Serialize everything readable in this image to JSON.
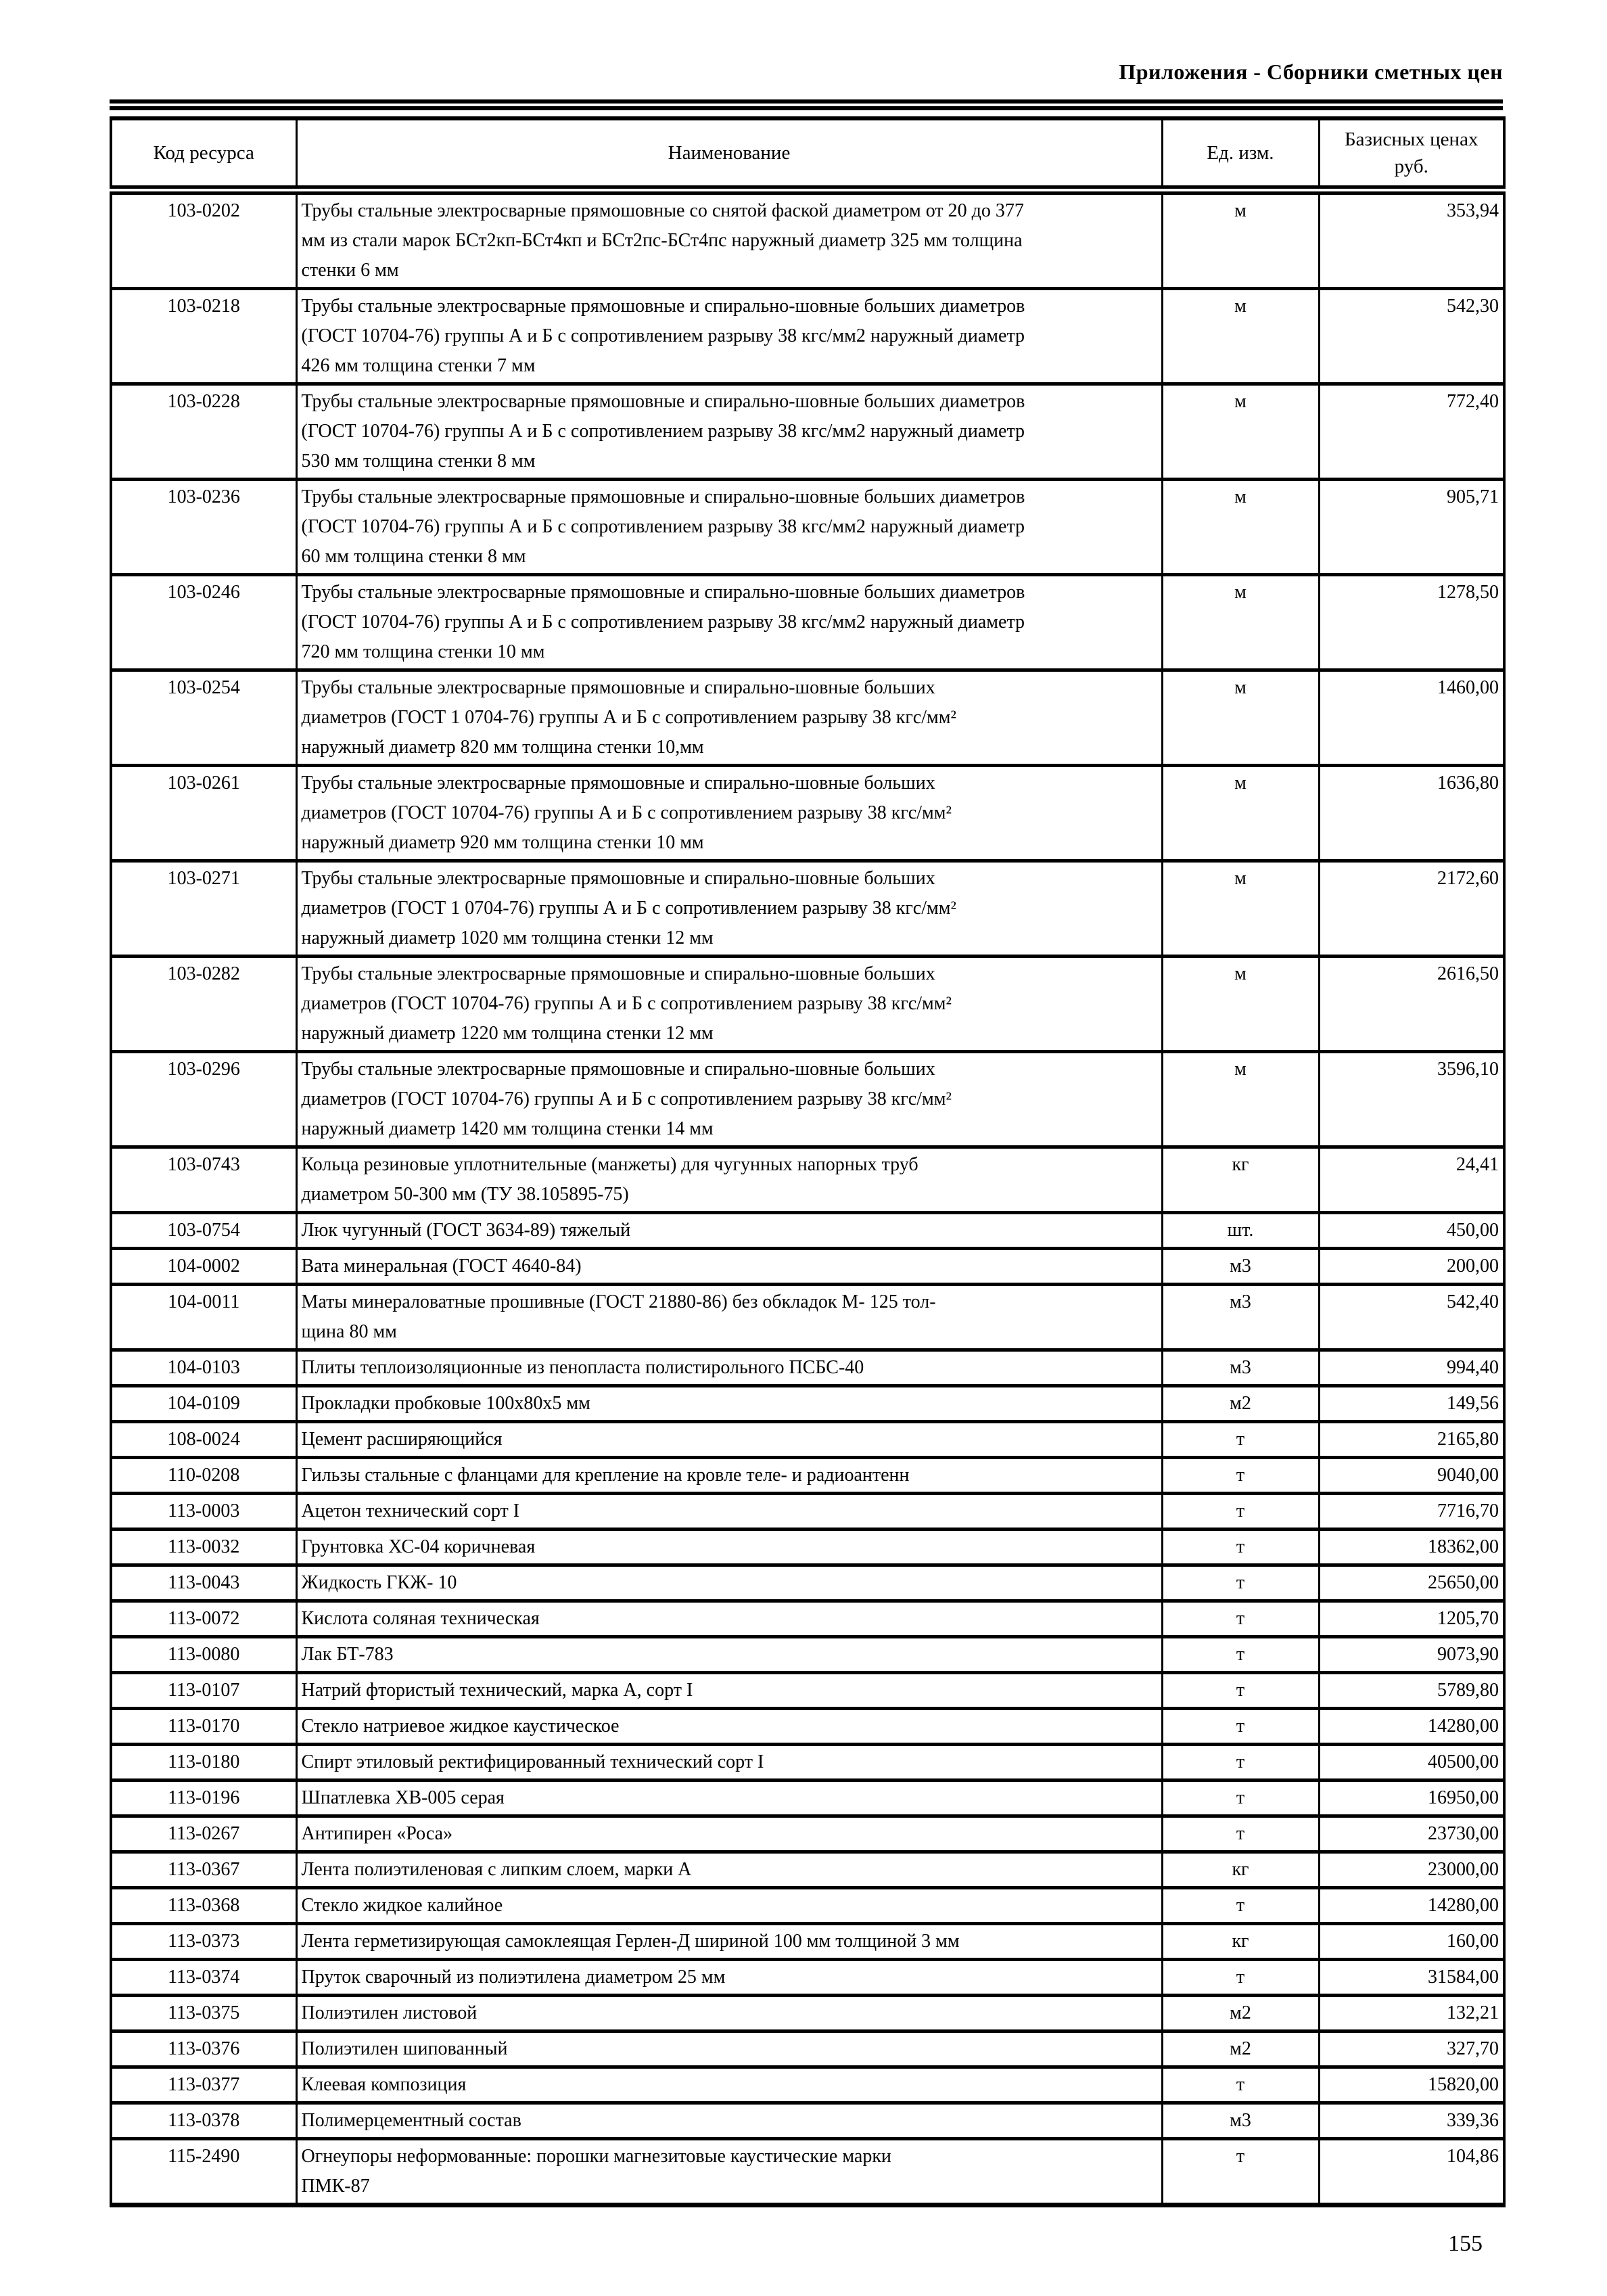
{
  "page": {
    "title": "Приложения - Сборники сметных цен",
    "page_number": "155"
  },
  "table": {
    "columns": [
      "Код ресурса",
      "Наименование",
      "Ед. изм.",
      "Базисных ценах\nруб."
    ],
    "rows": [
      {
        "code": "103-0202",
        "name": "Трубы стальные электросварные прямошовные со снятой фаской диаметром от 20 до 377\nмм из стали марок БСт2кп-БСт4кп и БСт2пс-БСт4пс наружный диаметр 325 мм толщина\nстенки 6 мм",
        "unit": "м",
        "price": "353,94"
      },
      {
        "code": "103-0218",
        "name": "Трубы стальные электросварные прямошовные и спирально-шовные больших диаметров\n(ГОСТ 10704-76) группы А и Б с сопротивлением разрыву 38 кгс/мм2 наружный диаметр\n426 мм толщина стенки 7 мм",
        "unit": "м",
        "price": "542,30"
      },
      {
        "code": "103-0228",
        "name": "Трубы стальные электросварные прямошовные и спирально-шовные больших диаметров\n(ГОСТ 10704-76) группы А и Б с сопротивлением разрыву 38 кгс/мм2 наружный диаметр\n530 мм толщина стенки 8 мм",
        "unit": "м",
        "price": "772,40"
      },
      {
        "code": "103-0236",
        "name": "Трубы стальные электросварные прямошовные и спирально-шовные больших диаметров\n(ГОСТ 10704-76) группы А и Б с сопротивлением разрыву 38 кгс/мм2 наружный диаметр\n60 мм толщина стенки 8 мм",
        "unit": "м",
        "price": "905,71"
      },
      {
        "code": "103-0246",
        "name": "Трубы стальные электросварные прямошовные и спирально-шовные больших диаметров\n(ГОСТ 10704-76) группы А и Б с сопротивлением разрыву 38 кгс/мм2 наружный диаметр\n720 мм толщина стенки 10 мм",
        "unit": "м",
        "price": "1278,50"
      },
      {
        "code": "103-0254",
        "name": "Трубы стальные электросварные прямошовные и спирально-шовные больших\nдиаметров (ГОСТ 1 0704-76) группы А и Б с сопротивлением разрыву 38 кгс/мм²\nнаружный диаметр 820 мм толщина стенки 10,мм",
        "unit": "м",
        "price": "1460,00"
      },
      {
        "code": "103-0261",
        "name": "Трубы стальные электросварные прямошовные и спирально-шовные больших\nдиаметров (ГОСТ 10704-76) группы А и Б с сопротивлением разрыву 38 кгс/мм²\nнаружный диаметр 920 мм толщина стенки 10 мм",
        "unit": "м",
        "price": "1636,80"
      },
      {
        "code": "103-0271",
        "name": "Трубы стальные электросварные прямошовные и спирально-шовные больших\nдиаметров (ГОСТ 1 0704-76) группы А и Б с сопротивлением разрыву 38 кгс/мм²\nнаружный диаметр 1020 мм толщина стенки 12 мм",
        "unit": "м",
        "price": "2172,60"
      },
      {
        "code": "103-0282",
        "name": "Трубы стальные электросварные прямошовные и спирально-шовные больших\nдиаметров (ГОСТ 10704-76) группы А и Б с сопротивлением разрыву 38 кгс/мм²\nнаружный диаметр 1220 мм толщина стенки 12 мм",
        "unit": "м",
        "price": "2616,50"
      },
      {
        "code": "103-0296",
        "name": "Трубы стальные электросварные прямошовные и спирально-шовные больших\nдиаметров (ГОСТ 10704-76) группы А и Б с сопротивлением разрыву 38 кгс/мм²\nнаружный диаметр 1420 мм толщина стенки 14 мм",
        "unit": "м",
        "price": "3596,10"
      },
      {
        "code": "103-0743",
        "name": "Кольца резиновые уплотнительные (манжеты) для чугунных напорных труб\nдиаметром 50-300 мм (ТУ 38.105895-75)",
        "unit": "кг",
        "price": "24,41"
      },
      {
        "code": "103-0754",
        "name": "Люк чугунный (ГОСТ 3634-89) тяжелый",
        "unit": "шт.",
        "price": "450,00"
      },
      {
        "code": "104-0002",
        "name": "Вата минеральная (ГОСТ 4640-84)",
        "unit": "м3",
        "price": "200,00"
      },
      {
        "code": "104-0011",
        "name": "Маты минераловатные прошивные (ГОСТ 21880-86) без обкладок М- 125 тол-\nщина 80 мм",
        "unit": "м3",
        "price": "542,40"
      },
      {
        "code": "104-0103",
        "name": "Плиты теплоизоляционные из пенопласта полистирольного ПСБС-40",
        "unit": "м3",
        "price": "994,40"
      },
      {
        "code": "104-0109",
        "name": "Прокладки пробковые 100х80х5 мм",
        "unit": "м2",
        "price": "149,56"
      },
      {
        "code": "108-0024",
        "name": "Цемент расширяющийся",
        "unit": "т",
        "price": "2165,80"
      },
      {
        "code": "110-0208",
        "name": "Гильзы стальные с фланцами для крепление на кровле теле- и радиоантенн",
        "unit": "т",
        "price": "9040,00"
      },
      {
        "code": "113-0003",
        "name": "Ацетон технический сорт I",
        "unit": "т",
        "price": "7716,70"
      },
      {
        "code": "113-0032",
        "name": "Грунтовка ХС-04 коричневая",
        "unit": "т",
        "price": "18362,00"
      },
      {
        "code": "113-0043",
        "name": "Жидкость ГКЖ- 10",
        "unit": "т",
        "price": "25650,00"
      },
      {
        "code": "113-0072",
        "name": "Кислота соляная техническая",
        "unit": "т",
        "price": "1205,70"
      },
      {
        "code": "113-0080",
        "name": "Лак БТ-783",
        "unit": "т",
        "price": "9073,90"
      },
      {
        "code": "113-0107",
        "name": "Натрий фтористый технический, марка А, сорт I",
        "unit": "т",
        "price": "5789,80"
      },
      {
        "code": "113-0170",
        "name": "Стекло натриевое жидкое каустическое",
        "unit": "т",
        "price": "14280,00"
      },
      {
        "code": "113-0180",
        "name": "Спирт этиловый ректифицированный технический сорт I",
        "unit": "т",
        "price": "40500,00"
      },
      {
        "code": "113-0196",
        "name": "Шпатлевка ХВ-005 серая",
        "unit": "т",
        "price": "16950,00"
      },
      {
        "code": "113-0267",
        "name": "Антипирен «Роса»",
        "unit": "т",
        "price": "23730,00"
      },
      {
        "code": "113-0367",
        "name": "Лента полиэтиленовая с липким слоем, марки А",
        "unit": "кг",
        "price": "23000,00"
      },
      {
        "code": "113-0368",
        "name": "Стекло жидкое калийное",
        "unit": "т",
        "price": "14280,00"
      },
      {
        "code": "113-0373",
        "name": "Лента герметизирующая самоклеящая Герлен-Д шириной 100 мм толщиной 3 мм",
        "unit": "кг",
        "price": "160,00"
      },
      {
        "code": "113-0374",
        "name": "Пруток сварочный из полиэтилена диаметром 25 мм",
        "unit": "т",
        "price": "31584,00"
      },
      {
        "code": "113-0375",
        "name": "Полиэтилен листовой",
        "unit": "м2",
        "price": "132,21"
      },
      {
        "code": "113-0376",
        "name": "Полиэтилен шипованный",
        "unit": "м2",
        "price": "327,70"
      },
      {
        "code": "113-0377",
        "name": "Клеевая композиция",
        "unit": "т",
        "price": "15820,00"
      },
      {
        "code": "113-0378",
        "name": "Полимерцементный состав",
        "unit": "м3",
        "price": "339,36"
      },
      {
        "code": "115-2490",
        "name": "Огнеупоры неформованные: порошки магнезитовые каустические марки\nПМК-87",
        "unit": "т",
        "price": "104,86"
      }
    ]
  }
}
